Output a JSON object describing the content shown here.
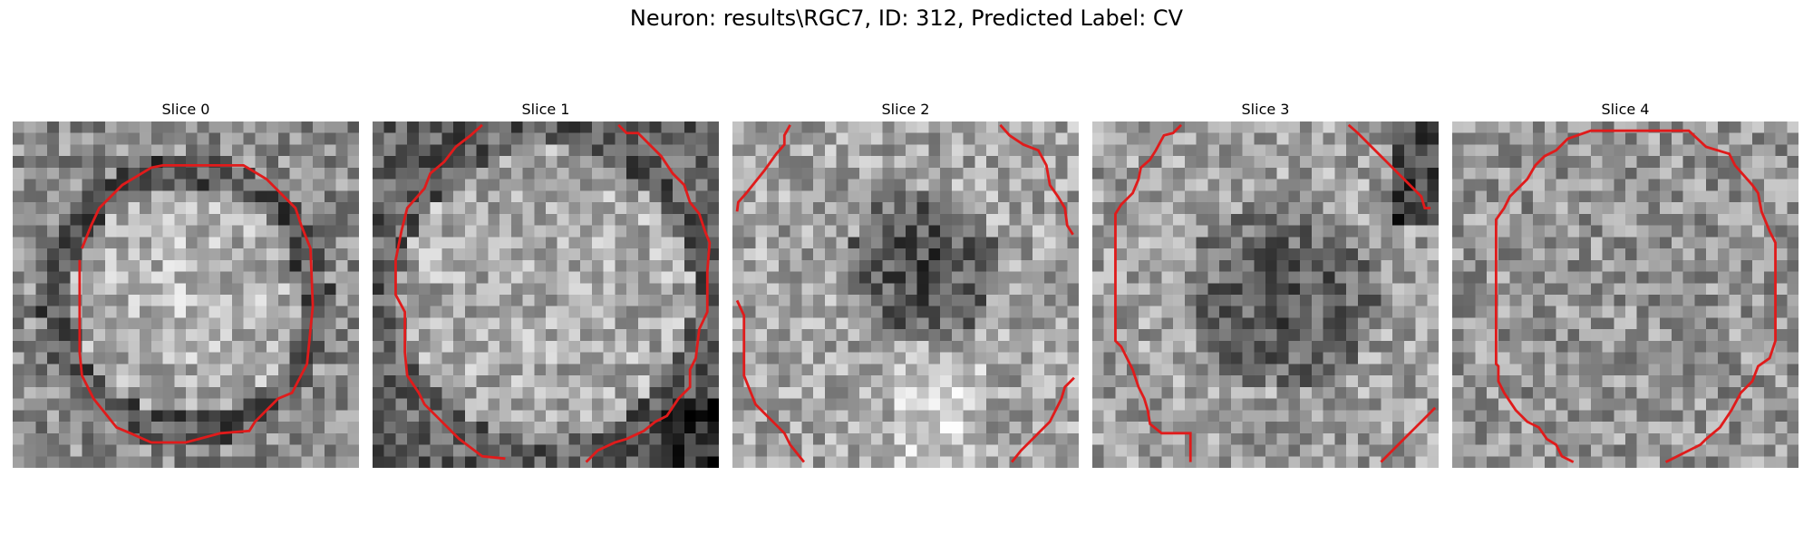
{
  "figure": {
    "title": "Neuron: results\\RGC7, ID: 312, Predicted Label: CV"
  },
  "slices": [
    {
      "title": "Slice 0"
    },
    {
      "title": "Slice 1"
    },
    {
      "title": "Slice 2"
    },
    {
      "title": "Slice 3"
    },
    {
      "title": "Slice 4"
    }
  ],
  "colors": {
    "contour": "#e01b1b",
    "image_colormap": "gray"
  }
}
